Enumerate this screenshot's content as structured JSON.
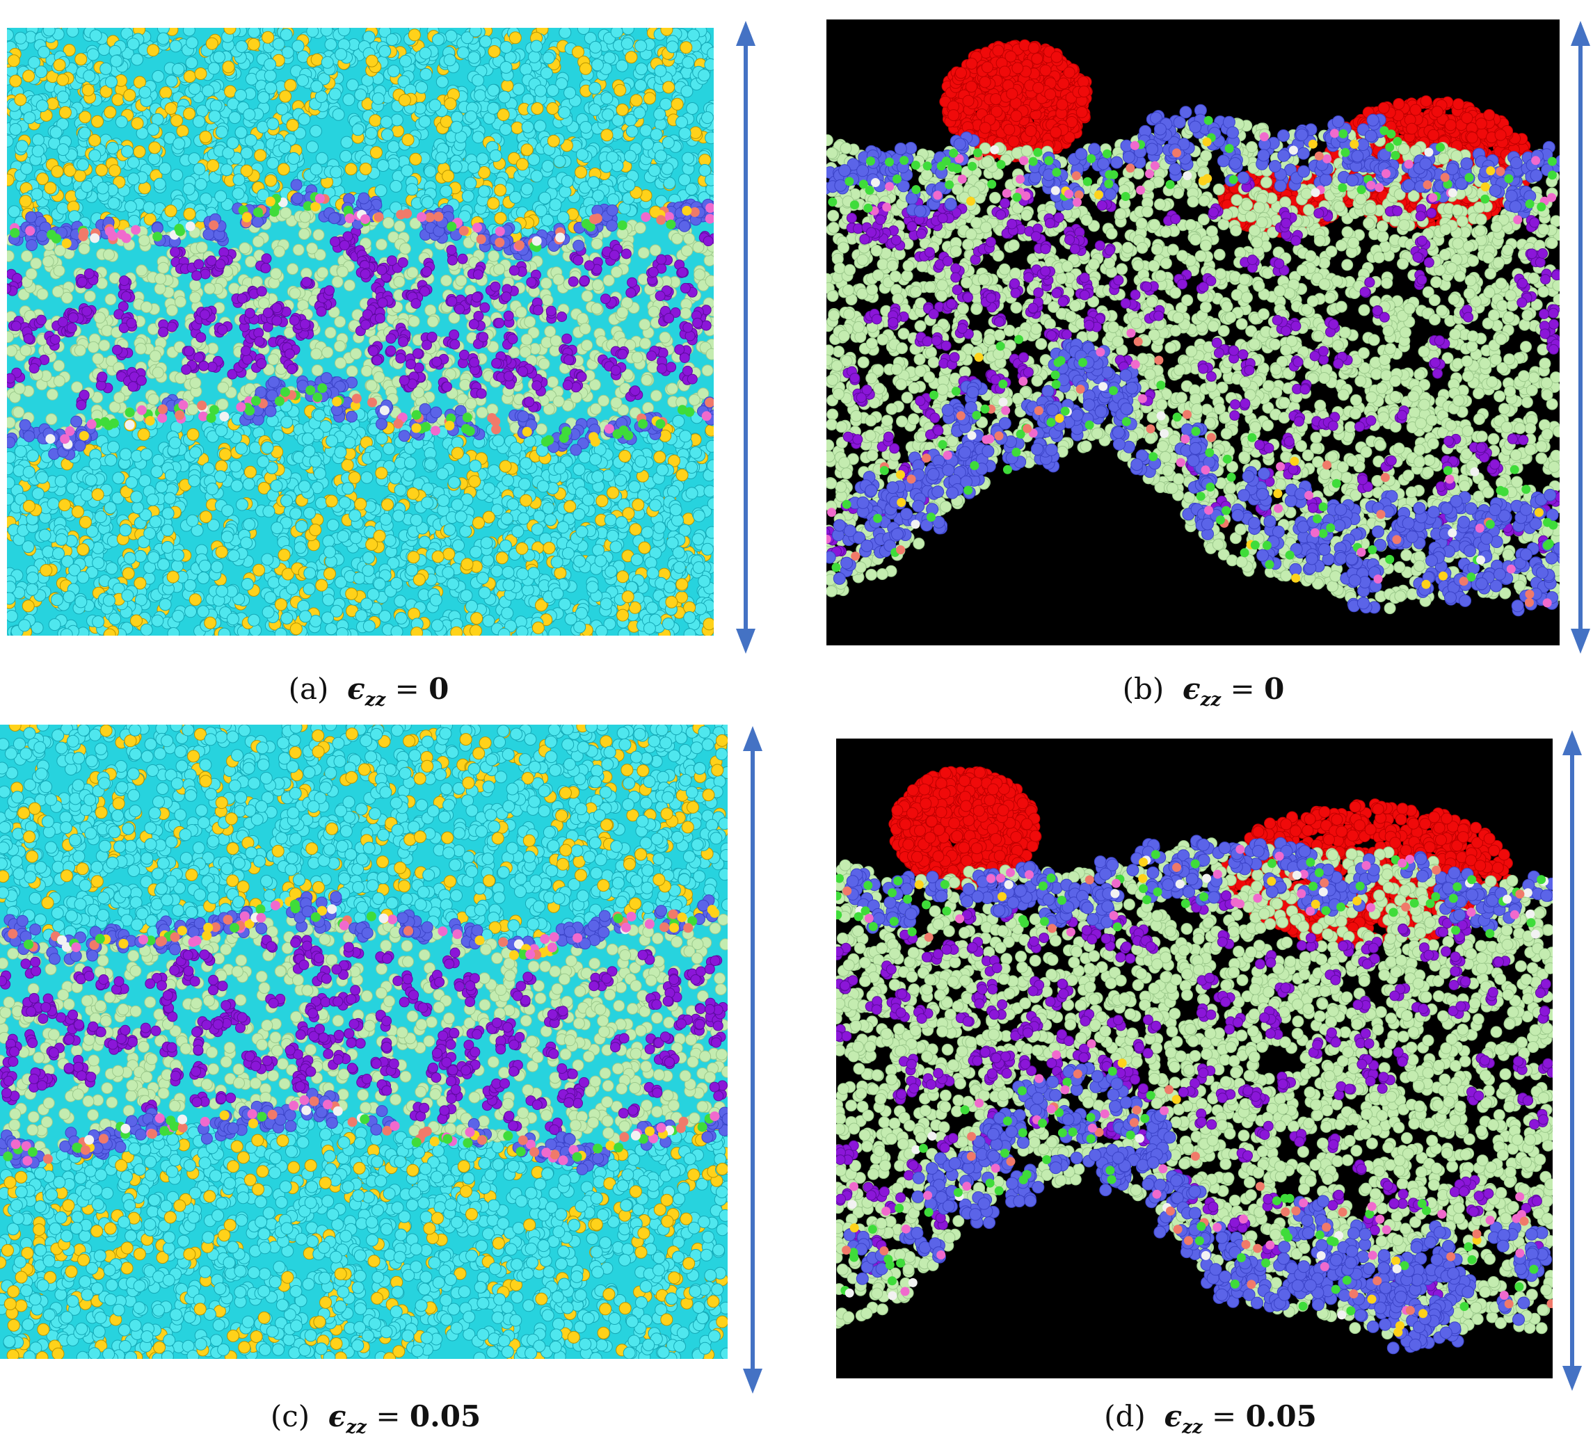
{
  "colors": {
    "water_bg": "#27d3de",
    "water_atom": "#4fe7ee",
    "water_dark": "#15a8b6",
    "ion": "#ffd21a",
    "lipid_tail": "#c4ecb0",
    "lipid_tail_dark": "#9cc98c",
    "headgroup": "#5b64e8",
    "headgroup_dark": "#3b43c7",
    "purple": "#8b16d8",
    "green": "#3fdc3a",
    "pink": "#f06acd",
    "salmon": "#f07a6a",
    "white": "#f2f2f2",
    "red_cluster": "#f00a0a",
    "red_dark": "#c00000",
    "vacuum": "#000000",
    "arrow": "#4472c4"
  },
  "panels": [
    {
      "id": "a",
      "view": "solvated",
      "caption_label": "(a)",
      "symbol": "ϵ",
      "subscript": "zz",
      "operator": "=",
      "value": "0"
    },
    {
      "id": "b",
      "view": "vacuum",
      "caption_label": "(b)",
      "symbol": "ϵ",
      "subscript": "zz",
      "operator": "=",
      "value": "0"
    },
    {
      "id": "c",
      "view": "solvated",
      "caption_label": "(c)",
      "symbol": "ϵ",
      "subscript": "zz",
      "operator": "=",
      "value": "0.05"
    },
    {
      "id": "d",
      "view": "vacuum",
      "caption_label": "(d)",
      "symbol": "ϵ",
      "subscript": "zz",
      "operator": "=",
      "value": "0.05"
    }
  ]
}
